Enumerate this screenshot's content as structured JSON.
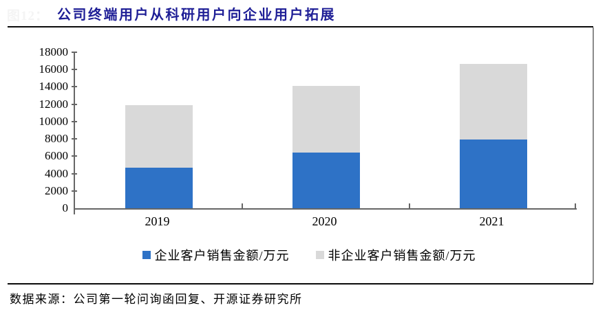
{
  "figure": {
    "number": "图12：",
    "title": "公司终端用户从科研用户向企业用户拓展",
    "source": "数据来源：公司第一轮问询函回复、开源证券研究所"
  },
  "chart_data": {
    "type": "bar",
    "stacked": true,
    "title": "公司终端用户从科研用户向企业用户拓展",
    "categories": [
      "2019",
      "2020",
      "2021"
    ],
    "series": [
      {
        "name": "企业客户销售金额/万元",
        "color": "#2E72C6",
        "values": [
          4650,
          6450,
          7950
        ]
      },
      {
        "name": "非企业客户销售金额/万元",
        "color": "#D9D9D9",
        "values": [
          7250,
          7700,
          8700
        ]
      }
    ],
    "totals": [
      11900,
      14150,
      16650
    ],
    "xlabel": "",
    "ylabel": "",
    "ylim": [
      0,
      18000
    ],
    "ytick_step": 2000,
    "grid": false,
    "legend_position": "bottom"
  },
  "colors": {
    "title": "#1e1e96",
    "axis": "#666666",
    "enterprise_bar": "#2E72C6",
    "non_enterprise_bar": "#D9D9D9",
    "rule": "#0a0a0a"
  }
}
